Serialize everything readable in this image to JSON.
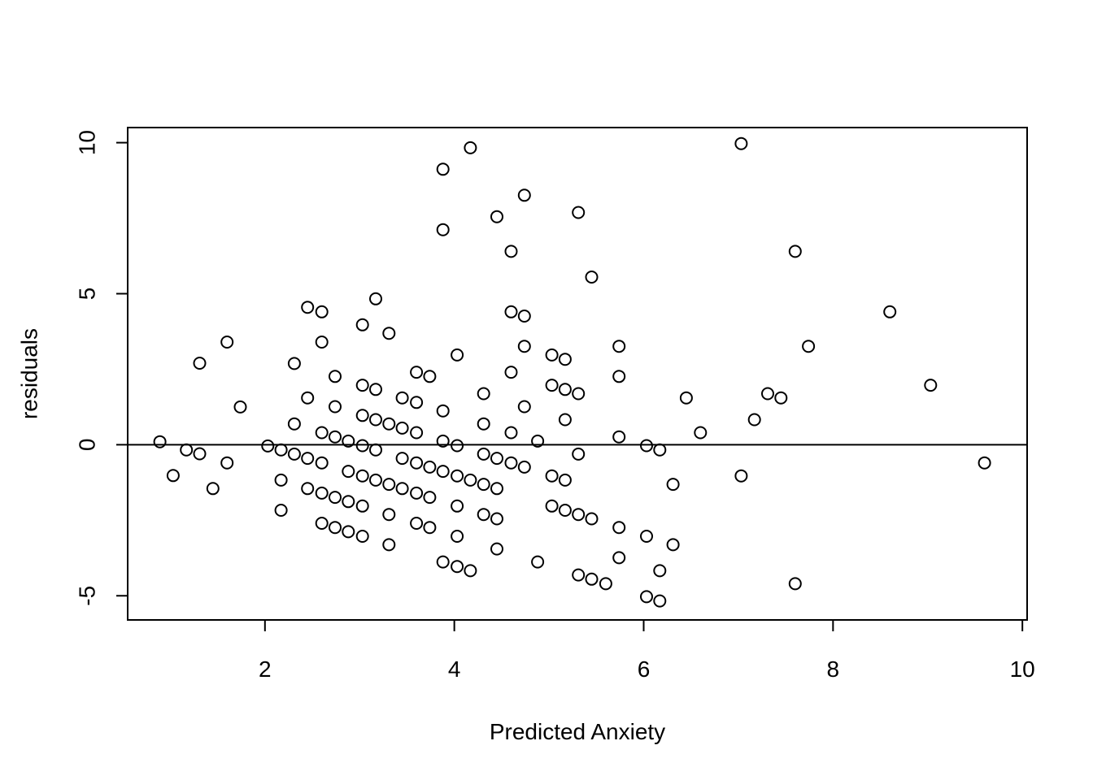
{
  "chart_data": {
    "type": "scatter",
    "xlabel": "Predicted Anxiety",
    "ylabel": "residuals",
    "xlim": [
      0.55,
      10.05
    ],
    "ylim": [
      -5.8,
      10.5
    ],
    "xticks": [
      2,
      4,
      6,
      8,
      10
    ],
    "yticks": [
      -5,
      0,
      5,
      10
    ],
    "xtick_labels": [
      "2",
      "4",
      "6",
      "8",
      "10"
    ],
    "ytick_labels": [
      "-5",
      "0",
      "5",
      "10"
    ],
    "reference_line_y": 0,
    "grid": false,
    "points": [
      [
        0.89,
        0.1
      ],
      [
        1.03,
        -1.02
      ],
      [
        1.17,
        -0.17
      ],
      [
        1.31,
        -0.3
      ],
      [
        1.31,
        2.7
      ],
      [
        1.45,
        -1.45
      ],
      [
        1.6,
        -0.6
      ],
      [
        1.6,
        3.4
      ],
      [
        1.74,
        1.25
      ],
      [
        2.03,
        -0.04
      ],
      [
        2.17,
        -0.17
      ],
      [
        2.17,
        -1.17
      ],
      [
        2.17,
        -2.17
      ],
      [
        2.31,
        -0.31
      ],
      [
        2.31,
        0.69
      ],
      [
        2.31,
        2.69
      ],
      [
        2.45,
        -0.45
      ],
      [
        2.45,
        -1.45
      ],
      [
        2.45,
        1.55
      ],
      [
        2.45,
        4.55
      ],
      [
        2.6,
        -0.6
      ],
      [
        2.6,
        -1.6
      ],
      [
        2.6,
        -2.6
      ],
      [
        2.6,
        0.4
      ],
      [
        2.6,
        3.4
      ],
      [
        2.6,
        4.4
      ],
      [
        2.74,
        -1.74
      ],
      [
        2.74,
        -2.74
      ],
      [
        2.74,
        0.26
      ],
      [
        2.74,
        1.26
      ],
      [
        2.74,
        2.26
      ],
      [
        2.88,
        -0.88
      ],
      [
        2.88,
        -1.88
      ],
      [
        2.88,
        -2.88
      ],
      [
        2.88,
        0.12
      ],
      [
        3.03,
        -1.03
      ],
      [
        3.03,
        -2.03
      ],
      [
        3.03,
        -3.03
      ],
      [
        3.03,
        -0.03
      ],
      [
        3.03,
        0.97
      ],
      [
        3.03,
        1.97
      ],
      [
        3.03,
        3.97
      ],
      [
        3.17,
        -0.17
      ],
      [
        3.17,
        -1.17
      ],
      [
        3.17,
        0.83
      ],
      [
        3.17,
        1.83
      ],
      [
        3.17,
        4.83
      ],
      [
        3.31,
        -1.31
      ],
      [
        3.31,
        -2.31
      ],
      [
        3.31,
        -3.31
      ],
      [
        3.31,
        0.69
      ],
      [
        3.31,
        3.69
      ],
      [
        3.45,
        -0.45
      ],
      [
        3.45,
        -1.45
      ],
      [
        3.45,
        0.55
      ],
      [
        3.45,
        1.55
      ],
      [
        3.6,
        -0.6
      ],
      [
        3.6,
        -1.6
      ],
      [
        3.6,
        -2.6
      ],
      [
        3.6,
        0.4
      ],
      [
        3.6,
        1.4
      ],
      [
        3.6,
        2.4
      ],
      [
        3.74,
        -0.74
      ],
      [
        3.74,
        -1.74
      ],
      [
        3.74,
        -2.74
      ],
      [
        3.74,
        2.26
      ],
      [
        3.88,
        -0.88
      ],
      [
        3.88,
        -3.88
      ],
      [
        3.88,
        0.12
      ],
      [
        3.88,
        1.12
      ],
      [
        3.88,
        7.12
      ],
      [
        3.88,
        9.12
      ],
      [
        4.03,
        -0.03
      ],
      [
        4.03,
        -1.03
      ],
      [
        4.03,
        -2.03
      ],
      [
        4.03,
        -3.03
      ],
      [
        4.03,
        -4.03
      ],
      [
        4.03,
        2.97
      ],
      [
        4.17,
        -1.17
      ],
      [
        4.17,
        -4.17
      ],
      [
        4.17,
        9.83
      ],
      [
        4.31,
        -0.31
      ],
      [
        4.31,
        -1.31
      ],
      [
        4.31,
        -2.31
      ],
      [
        4.31,
        0.69
      ],
      [
        4.31,
        1.69
      ],
      [
        4.45,
        -0.45
      ],
      [
        4.45,
        -1.45
      ],
      [
        4.45,
        -2.45
      ],
      [
        4.45,
        -3.45
      ],
      [
        4.45,
        7.55
      ],
      [
        4.6,
        -0.6
      ],
      [
        4.6,
        0.4
      ],
      [
        4.6,
        2.4
      ],
      [
        4.6,
        4.4
      ],
      [
        4.6,
        6.4
      ],
      [
        4.74,
        -0.74
      ],
      [
        4.74,
        1.26
      ],
      [
        4.74,
        3.26
      ],
      [
        4.74,
        4.26
      ],
      [
        4.74,
        8.26
      ],
      [
        4.88,
        0.12
      ],
      [
        4.88,
        -3.88
      ],
      [
        5.03,
        -1.03
      ],
      [
        5.03,
        -2.03
      ],
      [
        5.03,
        1.97
      ],
      [
        5.03,
        2.97
      ],
      [
        5.17,
        -1.17
      ],
      [
        5.17,
        -2.17
      ],
      [
        5.17,
        0.83
      ],
      [
        5.17,
        1.83
      ],
      [
        5.17,
        2.83
      ],
      [
        5.31,
        -0.31
      ],
      [
        5.31,
        -2.31
      ],
      [
        5.31,
        -4.31
      ],
      [
        5.31,
        1.69
      ],
      [
        5.31,
        7.69
      ],
      [
        5.45,
        -2.45
      ],
      [
        5.45,
        -4.45
      ],
      [
        5.45,
        5.55
      ],
      [
        5.6,
        -4.6
      ],
      [
        5.74,
        -2.74
      ],
      [
        5.74,
        -3.74
      ],
      [
        5.74,
        0.26
      ],
      [
        5.74,
        2.26
      ],
      [
        5.74,
        3.26
      ],
      [
        6.03,
        -0.03
      ],
      [
        6.03,
        -3.03
      ],
      [
        6.03,
        -5.03
      ],
      [
        6.17,
        -0.17
      ],
      [
        6.17,
        -4.17
      ],
      [
        6.17,
        -5.17
      ],
      [
        6.31,
        -1.31
      ],
      [
        6.31,
        -3.31
      ],
      [
        6.45,
        1.55
      ],
      [
        6.6,
        0.4
      ],
      [
        7.03,
        -1.03
      ],
      [
        7.03,
        9.97
      ],
      [
        7.17,
        0.83
      ],
      [
        7.31,
        1.69
      ],
      [
        7.45,
        1.55
      ],
      [
        7.6,
        -4.6
      ],
      [
        7.6,
        6.4
      ],
      [
        7.74,
        3.26
      ],
      [
        8.6,
        4.4
      ],
      [
        9.03,
        1.97
      ],
      [
        9.6,
        -0.6
      ]
    ]
  }
}
